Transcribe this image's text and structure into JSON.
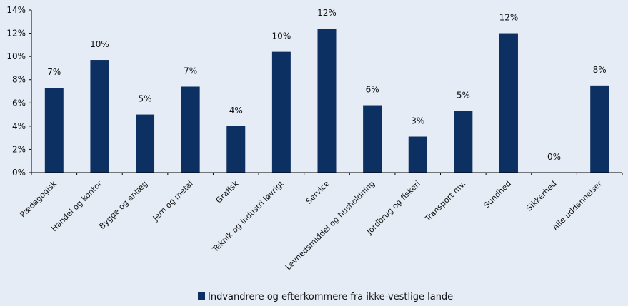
{
  "chart_data": {
    "type": "bar",
    "categories": [
      "Pædagogisk",
      "Handel og kontor",
      "Bygge og anlæg",
      "Jern og metal",
      "Grafisk",
      "Teknik og industri iøvrigt",
      "Service",
      "Levnedsmiddel og husholdning",
      "Jordbrug og fiskeri",
      "Transport mv.",
      "Sundhed",
      "Sikkerhed",
      "Alle uddannelser"
    ],
    "series": [
      {
        "name": "Indvandrere og efterkommere fra ikke-vestlige lande",
        "values": [
          7.3,
          9.7,
          5.0,
          7.4,
          4.0,
          10.4,
          12.4,
          5.8,
          3.1,
          5.3,
          12.0,
          0.0,
          7.5
        ],
        "labels": [
          "7%",
          "10%",
          "5%",
          "7%",
          "4%",
          "10%",
          "12%",
          "6%",
          "3%",
          "5%",
          "12%",
          "0%",
          "8%"
        ]
      }
    ],
    "yticks": [
      "0%",
      "2%",
      "4%",
      "6%",
      "8%",
      "10%",
      "12%",
      "14%"
    ],
    "ylim": [
      0,
      14
    ],
    "grid": false,
    "legend": "bottom-center",
    "colors": {
      "bar": "#0d3063",
      "axis": "#000000",
      "background": "#e6ecf5"
    }
  }
}
